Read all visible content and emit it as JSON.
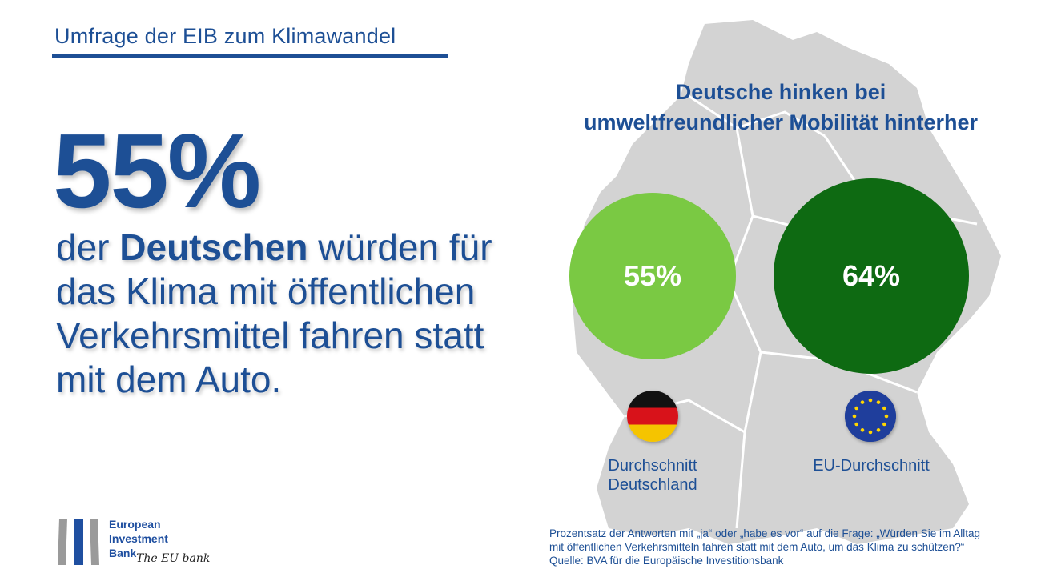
{
  "header": {
    "title": "Umfrage der EIB zum Klimawandel"
  },
  "headline": {
    "big_number": "55%",
    "text_pre": "der ",
    "text_bold": "Deutschen",
    "text_post": " würden für das Klima mit öffentlichen Verkehrsmittel fahren statt mit dem Auto."
  },
  "comparison": {
    "heading_line1": "Deutsche hinken bei",
    "heading_line2": "umweltfreundlicher Mobilität hinterher",
    "germany": {
      "value_label": "55%",
      "value": 55,
      "label_line1": "Durchschnitt",
      "label_line2": "Deutschland",
      "color": "#7ac943",
      "icon": "germany-flag-icon"
    },
    "eu": {
      "value_label": "64%",
      "value": 64,
      "label": "EU-Durchschnitt",
      "color": "#0e6a12",
      "icon": "eu-flag-icon"
    }
  },
  "footnote": {
    "line1": "Prozentsatz der Antworten mit „ja“ oder „habe es vor“ auf die Frage: „Würden Sie im Alltag",
    "line2": "mit öffentlichen Verkehrsmitteln fahren statt mit dem Auto, um das Klima zu schützen?“",
    "line3": "Quelle: BVA für die Europäische Investitionsbank"
  },
  "logo": {
    "line1": "European",
    "line2": "Investment",
    "line3": "Bank",
    "tagline": "The EU bank"
  }
}
